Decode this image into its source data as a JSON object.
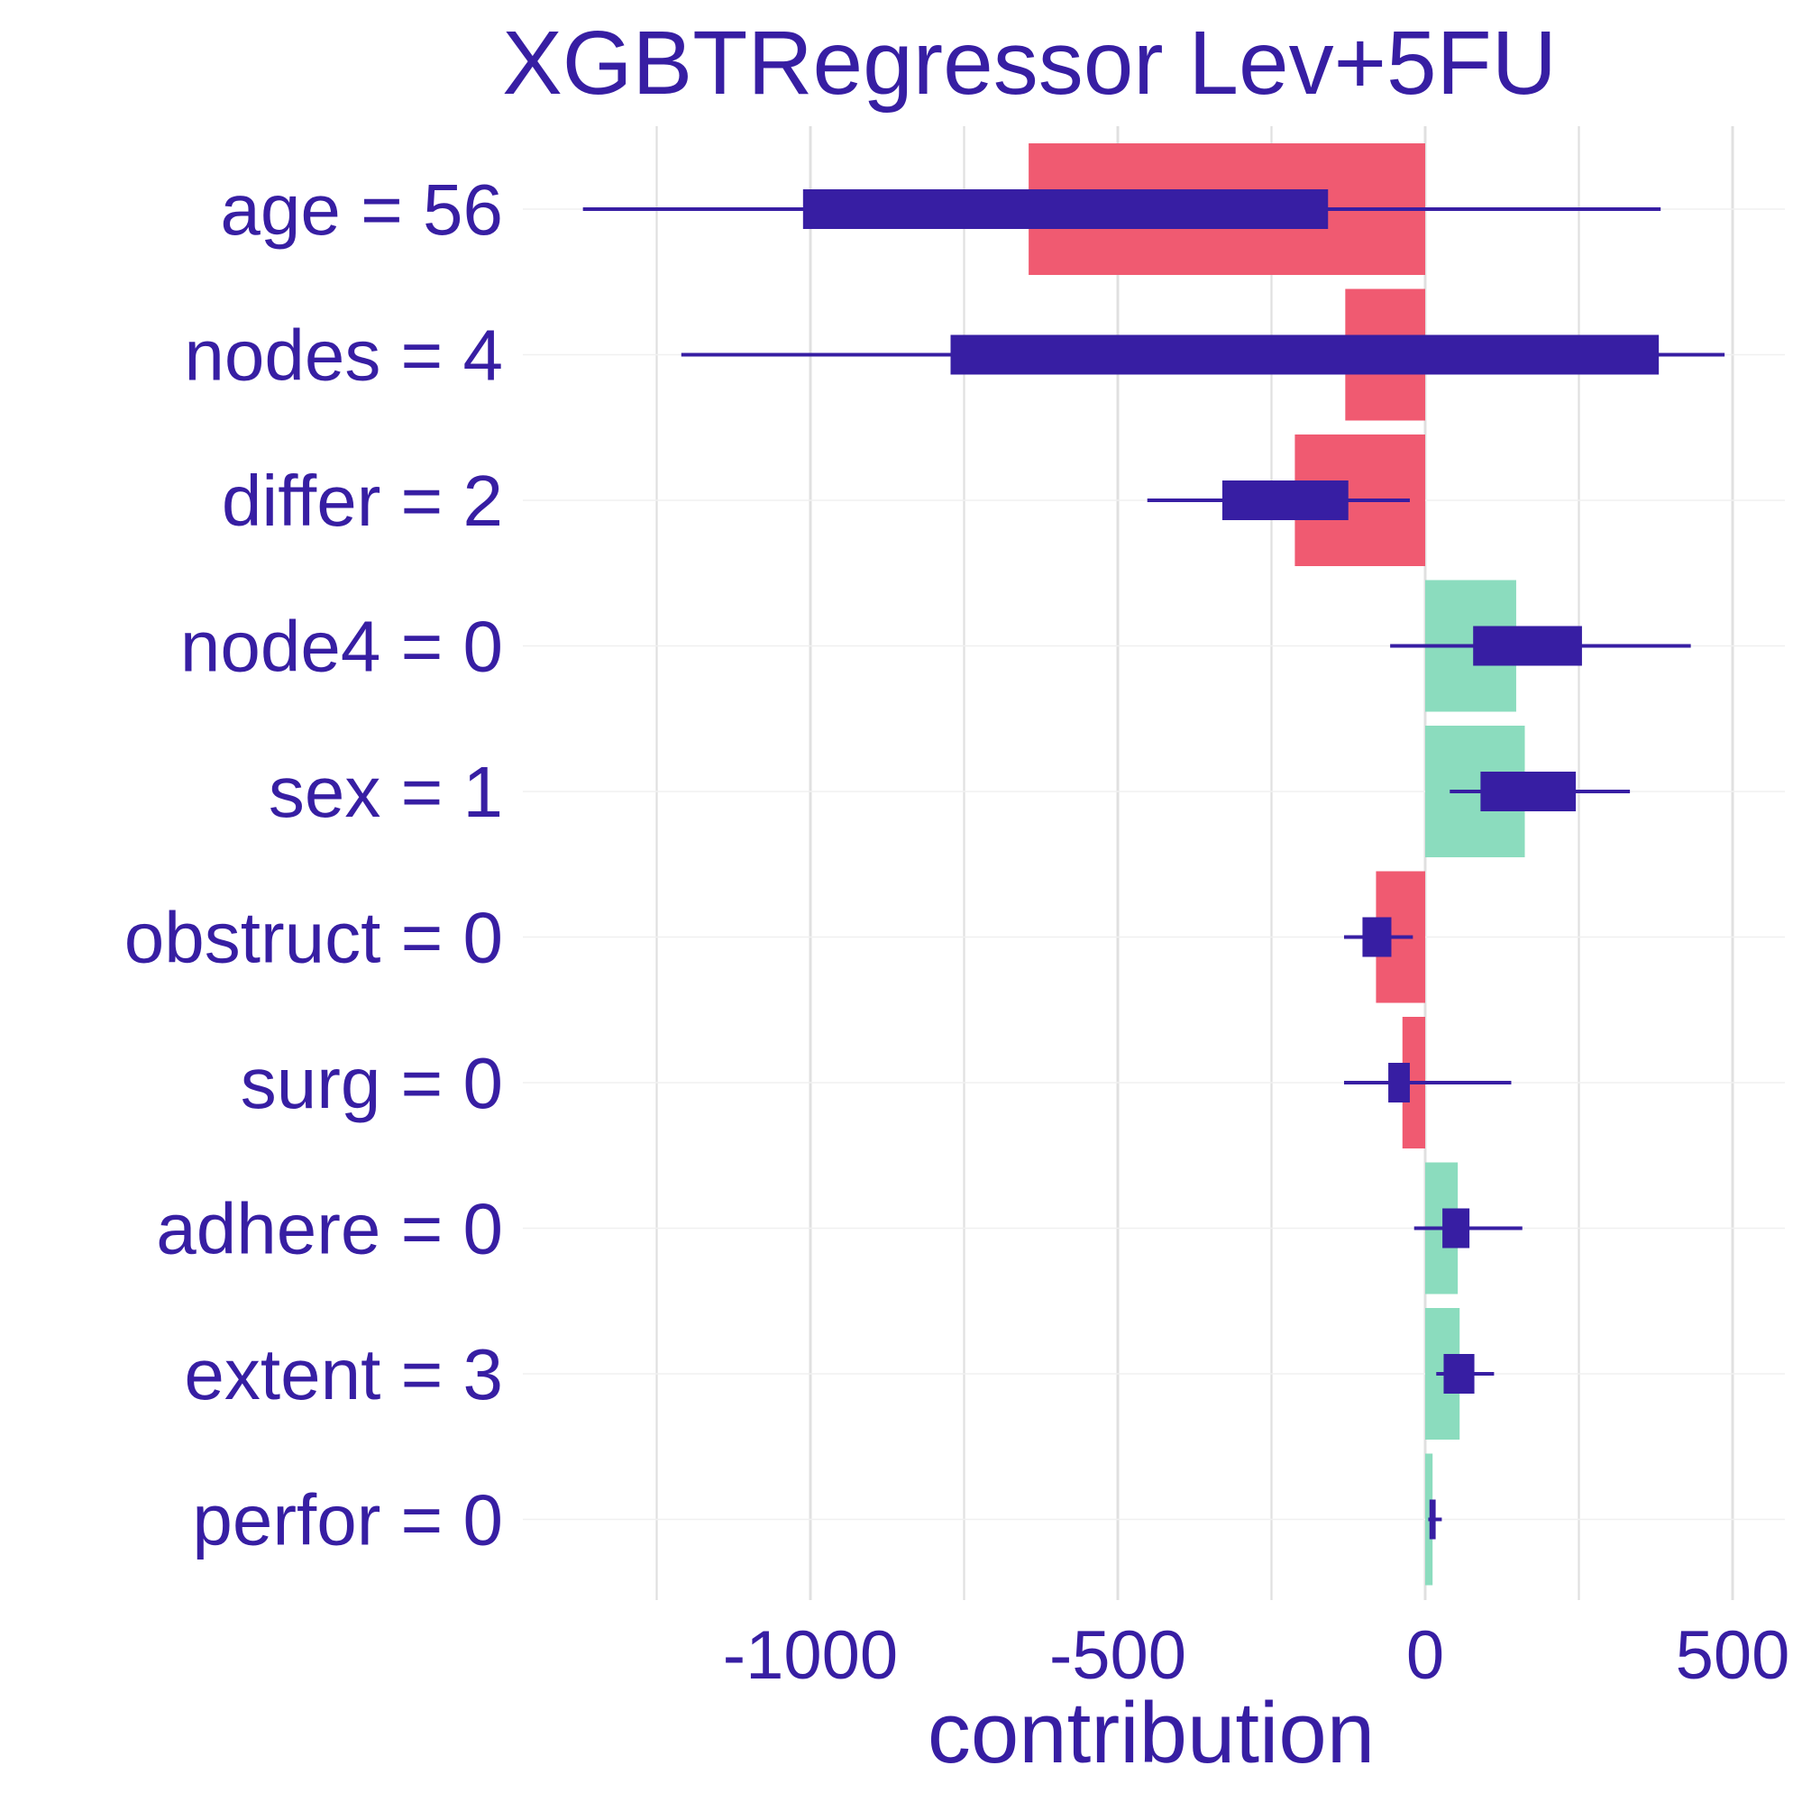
{
  "chart_data": {
    "type": "bar",
    "title": "XGBTRegressor Lev+5FU",
    "xlabel": "contribution",
    "ylabel": "",
    "xlim": [
      -1250,
      500
    ],
    "x_ticks": [
      -1000,
      -500,
      0,
      500
    ],
    "x_tick_labels": [
      "-1000",
      "-500",
      "0",
      "500"
    ],
    "grid": true,
    "colors": {
      "negative": "#f05a71",
      "positive": "#8bdcbe",
      "boxplot": "#371ea3",
      "text": "#371ea3",
      "grid": "#e0e0e0"
    },
    "categories": [
      "age = 56",
      "nodes = 4",
      "differ = 2",
      "node4 = 0",
      "sex = 1",
      "obstruct = 0",
      "surg = 0",
      "adhere = 0",
      "extent = 3",
      "perfor = 0"
    ],
    "values": [
      -645,
      -130,
      -212,
      148,
      162,
      -80,
      -37,
      53,
      56,
      12
    ],
    "boxplot": [
      {
        "min": -1370,
        "q1": -1012,
        "q3": -158,
        "max": 383
      },
      {
        "min": -1210,
        "q1": -772,
        "q3": 380,
        "max": 487
      },
      {
        "min": -452,
        "q1": -330,
        "q3": -125,
        "max": -25
      },
      {
        "min": -57,
        "q1": 78,
        "q3": 255,
        "max": 432
      },
      {
        "min": 40,
        "q1": 90,
        "q3": 245,
        "max": 333
      },
      {
        "min": -132,
        "q1": -102,
        "q3": -55,
        "max": -20
      },
      {
        "min": -132,
        "q1": -60,
        "q3": -25,
        "max": 140
      },
      {
        "min": -18,
        "q1": 28,
        "q3": 72,
        "max": 158
      },
      {
        "min": 18,
        "q1": 30,
        "q3": 80,
        "max": 112
      },
      {
        "min": 5,
        "q1": 7,
        "q3": 17,
        "max": 27
      }
    ]
  }
}
